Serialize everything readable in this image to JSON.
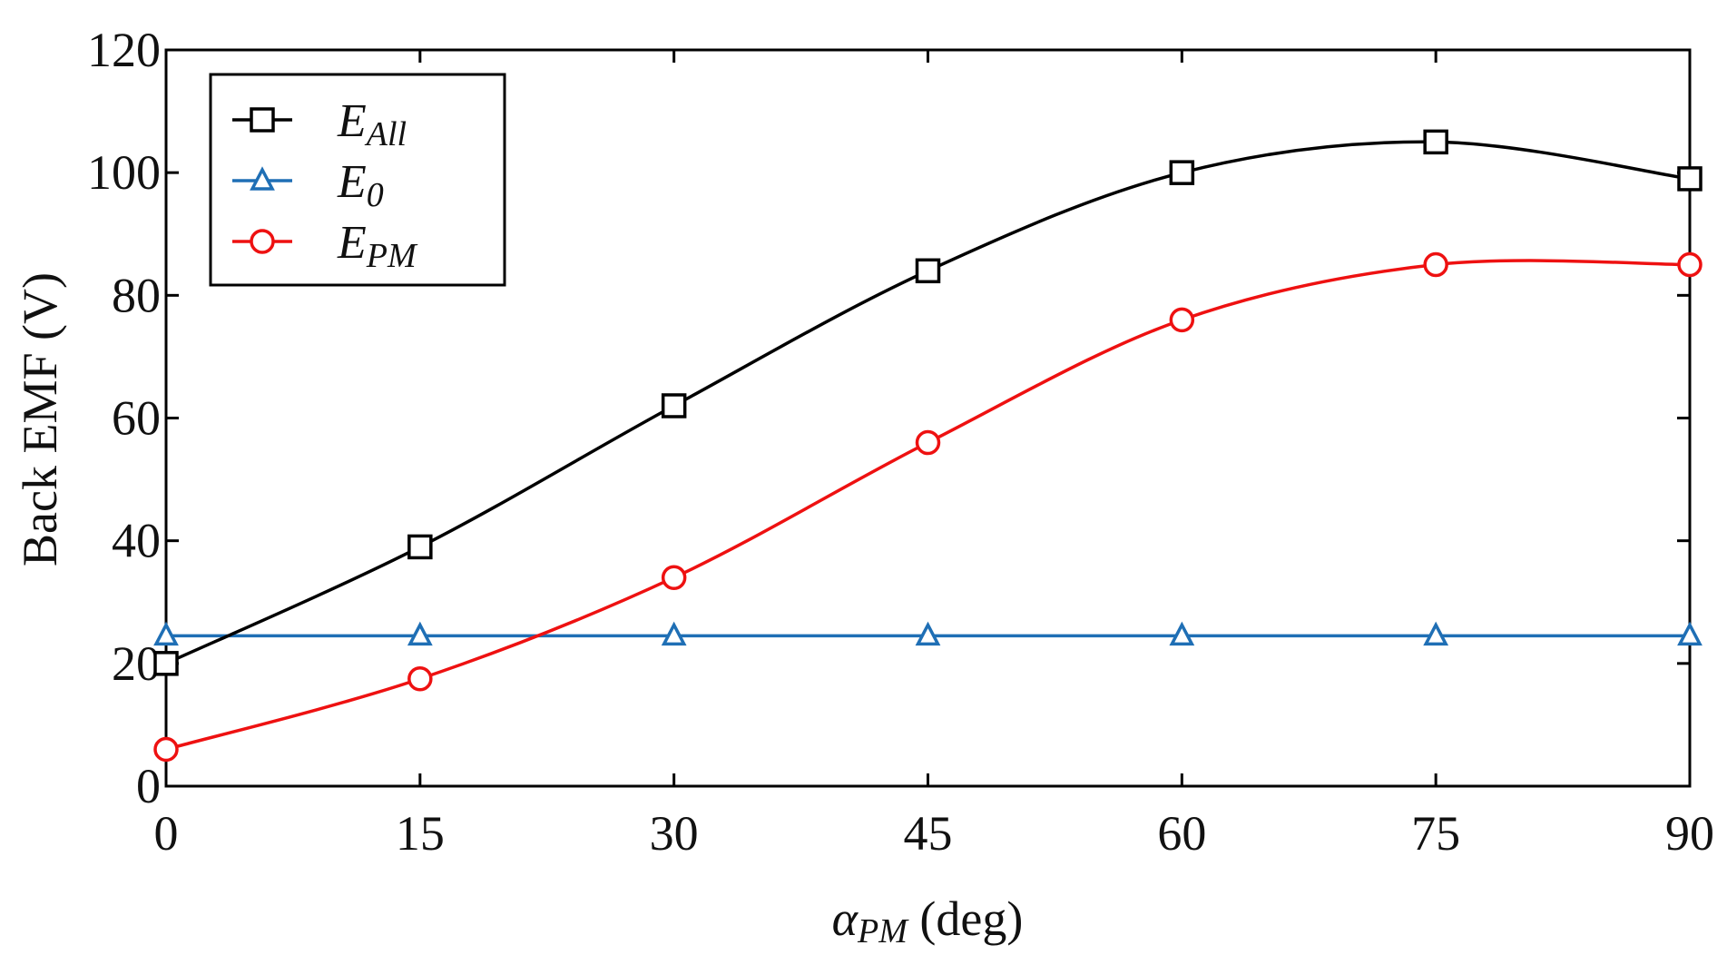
{
  "chart_data": {
    "type": "line",
    "title": "",
    "xlabel": {
      "symbol": "α",
      "subscript": "PM",
      "rest": " (deg)"
    },
    "ylabel": "Back EMF (V)",
    "x": [
      0,
      15,
      30,
      45,
      60,
      75,
      90
    ],
    "xlim": [
      0,
      90
    ],
    "ylim": [
      0,
      120
    ],
    "xticks": [
      "0",
      "15",
      "30",
      "45",
      "60",
      "75",
      "90"
    ],
    "yticks": [
      "0",
      "20",
      "40",
      "60",
      "80",
      "100",
      "120"
    ],
    "grid": false,
    "legend_position": "top-left",
    "series": [
      {
        "name": "E_All",
        "label_main": "E",
        "label_sub": "All",
        "color": "#000000",
        "marker": "square",
        "values": [
          20,
          39,
          62,
          84,
          100,
          105,
          99
        ]
      },
      {
        "name": "E_0",
        "label_main": "E",
        "label_sub": "0",
        "color": "#1f6fb5",
        "marker": "triangle",
        "values": [
          24.5,
          24.5,
          24.5,
          24.5,
          24.5,
          24.5,
          24.5
        ]
      },
      {
        "name": "E_PM",
        "label_main": "E",
        "label_sub": "PM",
        "color": "#ee1111",
        "marker": "circle",
        "values": [
          6,
          17.5,
          34,
          56,
          76,
          85,
          85
        ]
      }
    ]
  }
}
